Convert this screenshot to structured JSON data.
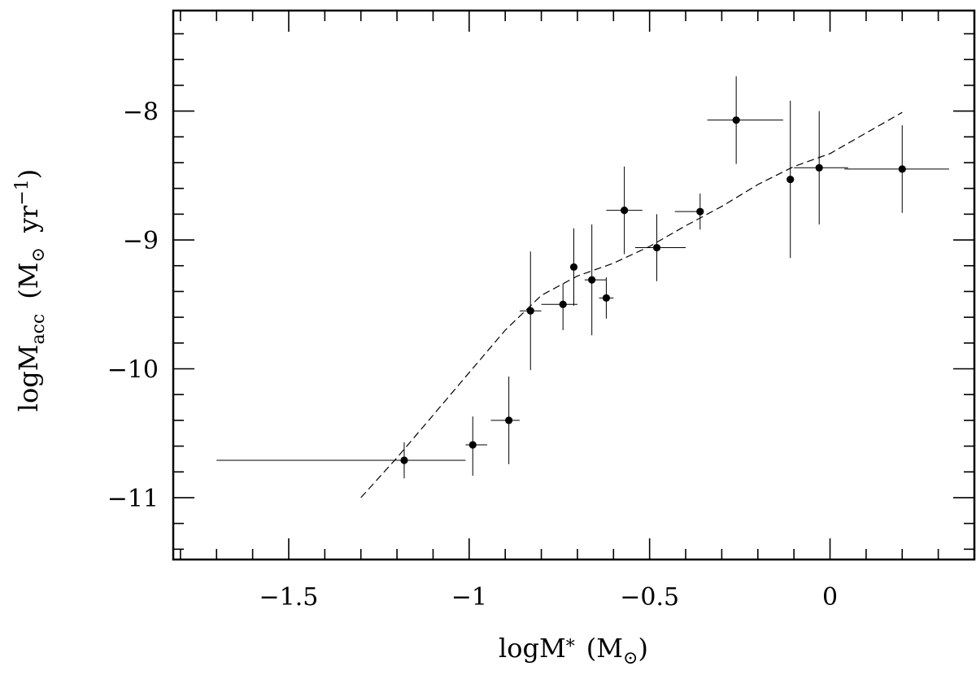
{
  "chart_data": {
    "type": "scatter",
    "xlabel": {
      "main": "logM",
      "sub": "*",
      "unit_open": "(M",
      "unit_sub": "⊙",
      "unit_close": ")"
    },
    "ylabel": {
      "main": "logM",
      "sub": "acc",
      "unit_open": "(M",
      "unit_sub": "⊙",
      "unit_mid": "yr",
      "unit_sup": "−1",
      "unit_close": ")"
    },
    "xlim": [
      -1.82,
      0.4
    ],
    "ylim": [
      -11.48,
      -7.22
    ],
    "x_ticks": [
      {
        "value": -1.5,
        "label": "−1.5"
      },
      {
        "value": -1.0,
        "label": "−1"
      },
      {
        "value": -0.5,
        "label": "−0.5"
      },
      {
        "value": 0.0,
        "label": "0"
      }
    ],
    "x_minor_step": 0.1,
    "y_ticks": [
      {
        "value": -11,
        "label": "−11"
      },
      {
        "value": -10,
        "label": "−10"
      },
      {
        "value": -9,
        "label": "−9"
      },
      {
        "value": -8,
        "label": "−8"
      }
    ],
    "y_minor_step": 0.2,
    "grid": false,
    "points": [
      {
        "x": -1.18,
        "y": -10.71,
        "xerr": [
          0.52,
          0.17
        ],
        "yerr": [
          0.14,
          0.14
        ]
      },
      {
        "x": -0.99,
        "y": -10.59,
        "xerr": [
          0.02,
          0.04
        ],
        "yerr": [
          0.24,
          0.22
        ]
      },
      {
        "x": -0.89,
        "y": -10.4,
        "xerr": [
          0.05,
          0.03
        ],
        "yerr": [
          0.34,
          0.34
        ]
      },
      {
        "x": -0.83,
        "y": -9.55,
        "xerr": [
          0.03,
          0.03
        ],
        "yerr": [
          0.46,
          0.46
        ]
      },
      {
        "x": -0.74,
        "y": -9.5,
        "xerr": [
          0.06,
          0.04
        ],
        "yerr": [
          0.2,
          0.16
        ]
      },
      {
        "x": -0.71,
        "y": -9.21,
        "xerr": [
          0.0,
          0.0
        ],
        "yerr": [
          0.3,
          0.3
        ]
      },
      {
        "x": -0.66,
        "y": -9.31,
        "xerr": [
          0.02,
          0.04
        ],
        "yerr": [
          0.43,
          0.43
        ]
      },
      {
        "x": -0.62,
        "y": -9.45,
        "xerr": [
          0.02,
          0.02
        ],
        "yerr": [
          0.16,
          0.16
        ]
      },
      {
        "x": -0.57,
        "y": -8.77,
        "xerr": [
          0.05,
          0.05
        ],
        "yerr": [
          0.34,
          0.34
        ]
      },
      {
        "x": -0.48,
        "y": -9.06,
        "xerr": [
          0.06,
          0.08
        ],
        "yerr": [
          0.26,
          0.26
        ]
      },
      {
        "x": -0.36,
        "y": -8.78,
        "xerr": [
          0.07,
          0.0
        ],
        "yerr": [
          0.14,
          0.14
        ]
      },
      {
        "x": -0.26,
        "y": -8.07,
        "xerr": [
          0.08,
          0.13
        ],
        "yerr": [
          0.34,
          0.34
        ]
      },
      {
        "x": -0.11,
        "y": -8.53,
        "xerr": [
          0.0,
          0.0
        ],
        "yerr": [
          0.61,
          0.61
        ]
      },
      {
        "x": -0.03,
        "y": -8.44,
        "xerr": [
          0.07,
          0.08
        ],
        "yerr": [
          0.44,
          0.44
        ]
      },
      {
        "x": 0.2,
        "y": -8.45,
        "xerr": [
          0.16,
          0.13
        ],
        "yerr": [
          0.34,
          0.34
        ]
      }
    ],
    "fit_line": {
      "style": "dashed",
      "x": [
        -1.3,
        -1.2,
        -1.1,
        -1.0,
        -0.9,
        -0.8,
        -0.7,
        -0.6,
        -0.5,
        -0.4,
        -0.3,
        -0.2,
        -0.1,
        0.0,
        0.1,
        0.2
      ],
      "y": [
        -11.0,
        -10.69,
        -10.36,
        -10.03,
        -9.7,
        -9.43,
        -9.28,
        -9.18,
        -9.05,
        -8.89,
        -8.74,
        -8.57,
        -8.43,
        -8.33,
        -8.17,
        -8.01
      ]
    }
  }
}
